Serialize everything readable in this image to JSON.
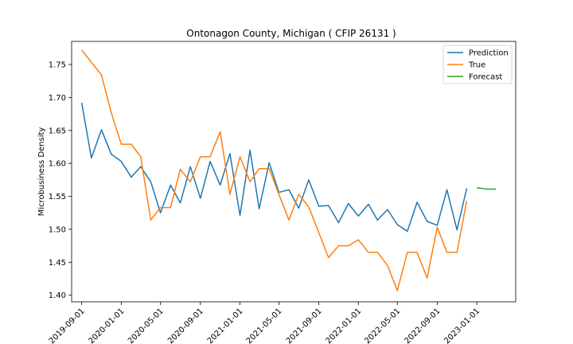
{
  "chart_data": {
    "type": "line",
    "title": "Ontonagon County, Michigan ( CFIP 26131 )",
    "xlabel": "",
    "ylabel": "Microbusiness Density",
    "ylim": [
      1.39,
      1.785
    ],
    "xlim": [
      "2019-08-01",
      "2023-05-01"
    ],
    "grid": false,
    "legend_position": "top-right",
    "x_ticks": [
      "2019-09-01",
      "2020-01-01",
      "2020-05-01",
      "2020-09-01",
      "2021-01-01",
      "2021-05-01",
      "2021-09-01",
      "2022-01-01",
      "2022-05-01",
      "2022-09-01",
      "2023-01-01"
    ],
    "y_ticks": [
      "1.40",
      "1.45",
      "1.50",
      "1.55",
      "1.60",
      "1.65",
      "1.70",
      "1.75"
    ],
    "series": [
      {
        "name": "Prediction",
        "color": "#1f77b4",
        "points": [
          [
            "2019-09-01",
            1.692
          ],
          [
            "2019-10-01",
            1.608
          ],
          [
            "2019-11-01",
            1.651
          ],
          [
            "2019-12-01",
            1.614
          ],
          [
            "2020-01-01",
            1.603
          ],
          [
            "2020-02-01",
            1.579
          ],
          [
            "2020-03-01",
            1.595
          ],
          [
            "2020-04-01",
            1.572
          ],
          [
            "2020-05-01",
            1.525
          ],
          [
            "2020-06-01",
            1.567
          ],
          [
            "2020-07-01",
            1.54
          ],
          [
            "2020-08-01",
            1.595
          ],
          [
            "2020-09-01",
            1.547
          ],
          [
            "2020-10-01",
            1.603
          ],
          [
            "2020-11-01",
            1.567
          ],
          [
            "2020-12-01",
            1.615
          ],
          [
            "2021-01-01",
            1.521
          ],
          [
            "2021-02-01",
            1.62
          ],
          [
            "2021-03-01",
            1.531
          ],
          [
            "2021-04-01",
            1.601
          ],
          [
            "2021-05-01",
            1.556
          ],
          [
            "2021-06-01",
            1.56
          ],
          [
            "2021-07-01",
            1.532
          ],
          [
            "2021-08-01",
            1.575
          ],
          [
            "2021-09-01",
            1.535
          ],
          [
            "2021-10-01",
            1.536
          ],
          [
            "2021-11-01",
            1.51
          ],
          [
            "2021-12-01",
            1.539
          ],
          [
            "2022-01-01",
            1.52
          ],
          [
            "2022-02-01",
            1.538
          ],
          [
            "2022-03-01",
            1.514
          ],
          [
            "2022-04-01",
            1.53
          ],
          [
            "2022-05-01",
            1.507
          ],
          [
            "2022-06-01",
            1.497
          ],
          [
            "2022-07-01",
            1.541
          ],
          [
            "2022-08-01",
            1.512
          ],
          [
            "2022-09-01",
            1.506
          ],
          [
            "2022-10-01",
            1.56
          ],
          [
            "2022-11-01",
            1.499
          ],
          [
            "2022-12-01",
            1.562
          ]
        ]
      },
      {
        "name": "True",
        "color": "#ff7f0e",
        "points": [
          [
            "2019-09-01",
            1.772
          ],
          [
            "2019-11-01",
            1.734
          ],
          [
            "2019-12-01",
            1.677
          ],
          [
            "2020-01-01",
            1.629
          ],
          [
            "2020-02-01",
            1.629
          ],
          [
            "2020-03-01",
            1.61
          ],
          [
            "2020-04-01",
            1.514
          ],
          [
            "2020-05-01",
            1.533
          ],
          [
            "2020-06-01",
            1.533
          ],
          [
            "2020-07-01",
            1.591
          ],
          [
            "2020-08-01",
            1.572
          ],
          [
            "2020-09-01",
            1.61
          ],
          [
            "2020-10-01",
            1.61
          ],
          [
            "2020-11-01",
            1.648
          ],
          [
            "2020-12-01",
            1.553
          ],
          [
            "2021-01-01",
            1.61
          ],
          [
            "2021-02-01",
            1.572
          ],
          [
            "2021-03-01",
            1.592
          ],
          [
            "2021-04-01",
            1.592
          ],
          [
            "2021-05-01",
            1.553
          ],
          [
            "2021-06-01",
            1.514
          ],
          [
            "2021-07-01",
            1.553
          ],
          [
            "2021-08-01",
            1.534
          ],
          [
            "2021-09-01",
            1.495
          ],
          [
            "2021-10-01",
            1.457
          ],
          [
            "2021-11-01",
            1.475
          ],
          [
            "2021-12-01",
            1.475
          ],
          [
            "2022-01-01",
            1.484
          ],
          [
            "2022-02-01",
            1.465
          ],
          [
            "2022-03-01",
            1.465
          ],
          [
            "2022-04-01",
            1.445
          ],
          [
            "2022-05-01",
            1.407
          ],
          [
            "2022-06-01",
            1.465
          ],
          [
            "2022-07-01",
            1.465
          ],
          [
            "2022-08-01",
            1.426
          ],
          [
            "2022-09-01",
            1.503
          ],
          [
            "2022-10-01",
            1.465
          ],
          [
            "2022-11-01",
            1.465
          ],
          [
            "2022-12-01",
            1.543
          ]
        ]
      },
      {
        "name": "Forecast",
        "color": "#2ca02c",
        "points": [
          [
            "2023-01-01",
            1.563
          ],
          [
            "2023-02-01",
            1.561
          ],
          [
            "2023-03-01",
            1.561
          ]
        ]
      }
    ]
  }
}
